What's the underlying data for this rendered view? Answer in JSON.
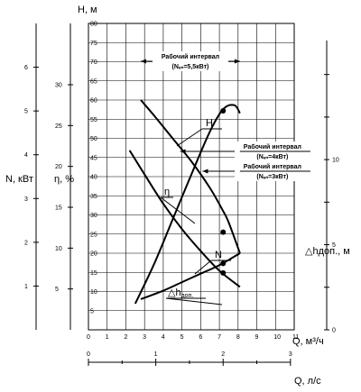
{
  "chart_data": {
    "type": "line",
    "axes": {
      "x_flow_m3h": {
        "label": "Q, м³/ч",
        "range": [
          0,
          11
        ],
        "ticks": [
          "0",
          "1",
          "2",
          "3",
          "4",
          "5",
          "6",
          "7",
          "8",
          "9",
          "10",
          "11"
        ]
      },
      "x_flow_ls": {
        "label": "Q, л/с",
        "range": [
          0,
          3
        ],
        "ticks": [
          "0",
          "1",
          "2",
          "3"
        ]
      },
      "y_head": {
        "label": "H, м",
        "range": [
          0,
          80
        ],
        "ticks": [
          "5",
          "10",
          "15",
          "20",
          "25",
          "30",
          "35",
          "40",
          "45",
          "50",
          "55",
          "60",
          "65",
          "70",
          "75",
          "80"
        ]
      },
      "y_power": {
        "label": "N, кВт",
        "range": [
          0,
          7
        ],
        "ticks": [
          "1",
          "2",
          "3",
          "4",
          "5",
          "6"
        ]
      },
      "y_efficiency": {
        "label": "η, %",
        "range": [
          0,
          37.5
        ],
        "ticks": [
          "5",
          "10",
          "15",
          "20",
          "25",
          "30"
        ]
      },
      "y_npsh": {
        "label": "△hдоп., м",
        "range": [
          0,
          18
        ],
        "ticks": [
          "0",
          "5",
          "10"
        ]
      }
    },
    "grid": true,
    "series": [
      {
        "name": "H",
        "axis": "y_head",
        "points": [
          [
            2.8,
            60
          ],
          [
            3.5,
            56
          ],
          [
            4.5,
            50
          ],
          [
            5.5,
            44
          ],
          [
            6.5,
            37
          ],
          [
            7.2,
            31
          ],
          [
            7.5,
            28
          ],
          [
            8.1,
            20
          ]
        ],
        "markers": [
          [
            7.2,
            25.5
          ]
        ]
      },
      {
        "name": "η",
        "axis": "y_efficiency",
        "points": [
          [
            2.5,
            3.2
          ],
          [
            3.5,
            8
          ],
          [
            4.5,
            13.5
          ],
          [
            5.5,
            19
          ],
          [
            6.5,
            24.3
          ],
          [
            7.2,
            27
          ],
          [
            7.8,
            27.5
          ],
          [
            8.1,
            26.5
          ]
        ],
        "markers": [
          [
            7.2,
            26.8
          ]
        ]
      },
      {
        "name": "N",
        "axis": "y_power",
        "points": [
          [
            2.2,
            4.1
          ],
          [
            3,
            3.55
          ],
          [
            4,
            2.88
          ],
          [
            5,
            2.3
          ],
          [
            6,
            1.8
          ],
          [
            7,
            1.35
          ],
          [
            8.1,
            0.98
          ]
        ],
        "markers": [
          [
            7.2,
            1.3
          ]
        ]
      },
      {
        "name": "△hдоп.",
        "axis": "y_npsh",
        "points": [
          [
            2.8,
            1.8
          ],
          [
            4,
            2.3
          ],
          [
            5,
            2.8
          ],
          [
            6,
            3.3
          ],
          [
            7,
            3.8
          ],
          [
            8.1,
            4.5
          ]
        ],
        "markers": [
          [
            7.2,
            3.9
          ]
        ]
      }
    ],
    "annotations": [
      {
        "text_top": "Рабочий интервал",
        "text_bottom": "(Nₑₙ=5,5кВт)",
        "range_q": [
          2.8,
          8.1
        ]
      },
      {
        "text_top": "Рабочий интервал",
        "text_bottom": "(Nₑₙ=4кВт)",
        "range_q": [
          4.9,
          8.1
        ]
      },
      {
        "text_top": "Рабочий интервал",
        "text_bottom": "(Nₑₙ=3кВт)",
        "range_q": [
          6.1,
          8.1
        ]
      }
    ]
  }
}
